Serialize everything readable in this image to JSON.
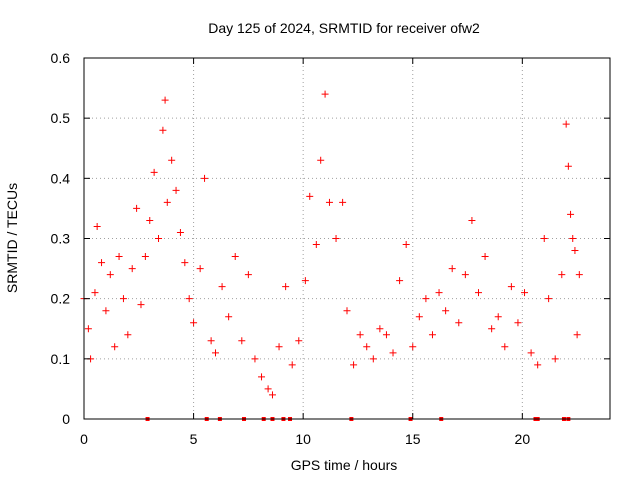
{
  "chart_data": {
    "type": "scatter",
    "title": "Day 125 of 2024, SRMTID for receiver ofw2",
    "xlabel": "GPS time / hours",
    "ylabel": "SRMTID / TECUs",
    "xlim": [
      0,
      24
    ],
    "ylim": [
      0,
      0.6
    ],
    "grid": true,
    "marker": "+",
    "color": "#ff0000",
    "x_ticks": [
      0,
      5,
      10,
      15,
      20
    ],
    "x_tick_labels": [
      "0",
      "5",
      "10",
      "15",
      "20"
    ],
    "y_ticks": [
      0,
      0.1,
      0.2,
      0.3,
      0.4,
      0.5,
      0.6
    ],
    "y_tick_labels": [
      "0",
      "0.1",
      "0.2",
      "0.3",
      "0.4",
      "0.5",
      "0.6"
    ],
    "series": [
      {
        "name": "SRMTID",
        "points": [
          [
            0.0,
            0.2
          ],
          [
            0.2,
            0.15
          ],
          [
            0.3,
            0.1
          ],
          [
            0.5,
            0.21
          ],
          [
            0.6,
            0.32
          ],
          [
            0.8,
            0.26
          ],
          [
            1.0,
            0.18
          ],
          [
            1.2,
            0.24
          ],
          [
            1.4,
            0.12
          ],
          [
            1.6,
            0.27
          ],
          [
            1.8,
            0.2
          ],
          [
            2.0,
            0.14
          ],
          [
            2.2,
            0.25
          ],
          [
            2.4,
            0.35
          ],
          [
            2.6,
            0.19
          ],
          [
            2.8,
            0.27
          ],
          [
            3.0,
            0.33
          ],
          [
            3.2,
            0.41
          ],
          [
            3.4,
            0.3
          ],
          [
            3.6,
            0.48
          ],
          [
            3.7,
            0.53
          ],
          [
            3.8,
            0.36
          ],
          [
            4.0,
            0.43
          ],
          [
            4.2,
            0.38
          ],
          [
            4.4,
            0.31
          ],
          [
            4.6,
            0.26
          ],
          [
            4.8,
            0.2
          ],
          [
            5.0,
            0.16
          ],
          [
            5.3,
            0.25
          ],
          [
            5.5,
            0.4
          ],
          [
            5.8,
            0.13
          ],
          [
            6.0,
            0.11
          ],
          [
            6.3,
            0.22
          ],
          [
            6.6,
            0.17
          ],
          [
            6.9,
            0.27
          ],
          [
            7.2,
            0.13
          ],
          [
            7.5,
            0.24
          ],
          [
            7.8,
            0.1
          ],
          [
            8.1,
            0.07
          ],
          [
            8.4,
            0.05
          ],
          [
            8.6,
            0.04
          ],
          [
            8.9,
            0.12
          ],
          [
            9.2,
            0.22
          ],
          [
            9.5,
            0.09
          ],
          [
            9.8,
            0.13
          ],
          [
            10.1,
            0.23
          ],
          [
            10.3,
            0.37
          ],
          [
            10.6,
            0.29
          ],
          [
            10.8,
            0.43
          ],
          [
            11.0,
            0.54
          ],
          [
            11.2,
            0.36
          ],
          [
            11.5,
            0.3
          ],
          [
            11.8,
            0.36
          ],
          [
            12.0,
            0.18
          ],
          [
            12.3,
            0.09
          ],
          [
            12.6,
            0.14
          ],
          [
            12.9,
            0.12
          ],
          [
            13.2,
            0.1
          ],
          [
            13.5,
            0.15
          ],
          [
            13.8,
            0.14
          ],
          [
            14.1,
            0.11
          ],
          [
            14.4,
            0.23
          ],
          [
            14.7,
            0.29
          ],
          [
            15.0,
            0.12
          ],
          [
            15.3,
            0.17
          ],
          [
            15.6,
            0.2
          ],
          [
            15.9,
            0.14
          ],
          [
            16.2,
            0.21
          ],
          [
            16.5,
            0.18
          ],
          [
            16.8,
            0.25
          ],
          [
            17.1,
            0.16
          ],
          [
            17.4,
            0.24
          ],
          [
            17.7,
            0.33
          ],
          [
            18.0,
            0.21
          ],
          [
            18.3,
            0.27
          ],
          [
            18.6,
            0.15
          ],
          [
            18.9,
            0.17
          ],
          [
            19.2,
            0.12
          ],
          [
            19.5,
            0.22
          ],
          [
            19.8,
            0.16
          ],
          [
            20.1,
            0.21
          ],
          [
            20.4,
            0.11
          ],
          [
            20.7,
            0.09
          ],
          [
            21.0,
            0.3
          ],
          [
            21.2,
            0.2
          ],
          [
            21.5,
            0.1
          ],
          [
            21.8,
            0.24
          ],
          [
            22.0,
            0.49
          ],
          [
            22.1,
            0.42
          ],
          [
            22.2,
            0.34
          ],
          [
            22.3,
            0.3
          ],
          [
            22.4,
            0.28
          ],
          [
            22.5,
            0.14
          ],
          [
            22.6,
            0.24
          ]
        ]
      }
    ],
    "data_gap_markers": [
      2.9,
      5.6,
      6.2,
      7.3,
      8.2,
      8.6,
      9.1,
      9.4,
      12.2,
      14.9,
      16.3,
      20.6,
      20.7,
      21.9,
      22.1
    ]
  }
}
